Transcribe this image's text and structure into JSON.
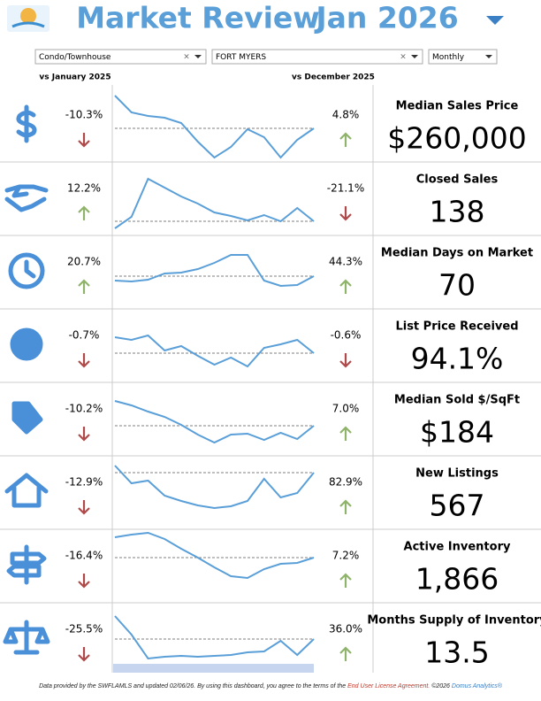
{
  "header": {
    "title": "Market Review",
    "period": "Jan 2026"
  },
  "filters": [
    "Condo/Townhouse",
    "FORT MYERS",
    "Monthly"
  ],
  "columns": {
    "yoy": "vs January 2025",
    "mom": "vs December 2025"
  },
  "rows": [
    {
      "icon": "dollar",
      "yoy": "-10.3%",
      "yoy_up": false,
      "mom": "4.8%",
      "mom_up": true,
      "metric": "Median Sales Price",
      "value": "$260,000",
      "spark": [
        75,
        56,
        52,
        50,
        44,
        23,
        5,
        17,
        37,
        28,
        5,
        25,
        38
      ]
    },
    {
      "icon": "handshake",
      "yoy": "12.2%",
      "yoy_up": true,
      "mom": "-21.1%",
      "mom_up": false,
      "metric": "Closed Sales",
      "value": "138",
      "spark": [
        8,
        21,
        64,
        54,
        44,
        36,
        26,
        22,
        17,
        23,
        16,
        31,
        16
      ]
    },
    {
      "icon": "clock",
      "yoy": "20.7%",
      "yoy_up": true,
      "mom": "44.3%",
      "mom_up": true,
      "metric": "Median Days on Market",
      "value": "70",
      "spark": [
        32,
        31,
        33,
        40,
        41,
        45,
        52,
        61,
        61,
        32,
        26,
        27,
        37
      ]
    },
    {
      "icon": "gauge",
      "yoy": "-0.7%",
      "yoy_up": false,
      "mom": "-0.6%",
      "mom_up": false,
      "metric": "List Price Received",
      "value": "94.1%",
      "spark": [
        51,
        48,
        53,
        36,
        41,
        30,
        20,
        28,
        18,
        39,
        43,
        48,
        33
      ]
    },
    {
      "icon": "tag",
      "yoy": "-10.2%",
      "yoy_up": false,
      "mom": "7.0%",
      "mom_up": true,
      "metric": "Median Sold $/SqFt",
      "value": "$184",
      "spark": [
        62,
        57,
        50,
        44,
        35,
        24,
        15,
        24,
        25,
        18,
        26,
        19,
        34
      ]
    },
    {
      "icon": "house",
      "yoy": "-12.9%",
      "yoy_up": false,
      "mom": "82.9%",
      "mom_up": true,
      "metric": "New Listings",
      "value": "567",
      "spark": [
        72,
        52,
        55,
        38,
        32,
        27,
        24,
        26,
        32,
        57,
        36,
        41,
        64
      ]
    },
    {
      "icon": "sign",
      "yoy": "-16.4%",
      "yoy_up": false,
      "mom": "7.2%",
      "mom_up": true,
      "metric": "Active Inventory",
      "value": "1,866",
      "spark": [
        74,
        77,
        79,
        72,
        61,
        51,
        40,
        30,
        28,
        38,
        44,
        45,
        51
      ]
    },
    {
      "icon": "scale",
      "yoy": "-25.5%",
      "yoy_up": false,
      "mom": "36.0%",
      "mom_up": true,
      "metric": "Months Supply of Inventory",
      "value": "13.5",
      "spark": [
        68,
        47,
        20,
        22,
        23,
        22,
        23,
        24,
        27,
        28,
        40,
        24,
        42
      ]
    }
  ],
  "footer": {
    "text": "Data provided by the SWFLAMLS and updated 02/06/26.  By using this dashboard, you agree to the terms of the",
    "link": "End User License Agreement.",
    "credit": "©2026",
    "brand": "Domus Analytics®"
  }
}
